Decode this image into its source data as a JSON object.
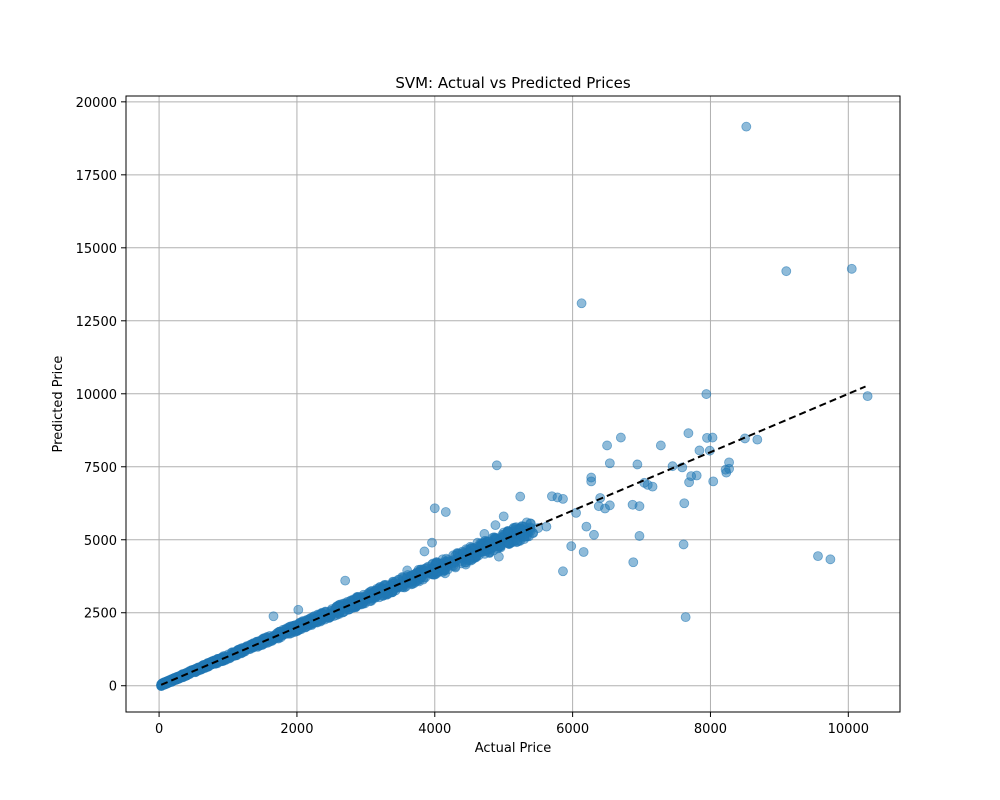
{
  "chart_data": {
    "type": "scatter",
    "title": "SVM: Actual vs Predicted Prices",
    "xlabel": "Actual Price",
    "ylabel": "Predicted Price",
    "xlim": [
      -480,
      10750
    ],
    "ylim": [
      -900,
      20200
    ],
    "xticks": [
      0,
      2000,
      4000,
      6000,
      8000,
      10000
    ],
    "xtick_labels": [
      "0",
      "2000",
      "4000",
      "6000",
      "8000",
      "10000"
    ],
    "yticks": [
      0,
      2500,
      5000,
      7500,
      10000,
      12500,
      15000,
      17500,
      20000
    ],
    "ytick_labels": [
      "0",
      "2500",
      "5000",
      "7500",
      "10000",
      "12500",
      "15000",
      "17500",
      "20000"
    ],
    "grid": true,
    "legend": "none",
    "point_color": "#1f77b4",
    "point_alpha": 0.5,
    "reference_line": {
      "style": "dashed",
      "color": "#000000",
      "x": [
        30,
        10250
      ],
      "y": [
        30,
        10250
      ]
    },
    "series": [
      {
        "x": [
          8520,
          9100,
          10050,
          6130,
          7940,
          10280,
          8680,
          8500,
          7950,
          8030,
          7680,
          6700,
          6500,
          7280,
          6540,
          4900,
          6940,
          7840,
          7450,
          8270,
          8220,
          6270,
          7990,
          7800,
          8270,
          8040,
          8230,
          7690,
          6270,
          7590,
          7620,
          5000,
          5240,
          4000,
          4160,
          6870,
          6970,
          7040,
          7090,
          7160,
          6400,
          5700,
          5780,
          5860,
          6050,
          6380,
          6470,
          6540,
          7720,
          7610,
          6970,
          6880,
          9560,
          9740,
          7640,
          5500,
          5300,
          4880,
          4760,
          4620,
          4500,
          4350,
          3850,
          3960,
          3600,
          3400,
          3050,
          2700,
          2500,
          2020,
          1660,
          5980,
          6160,
          6310,
          6200,
          5620,
          5860,
          4450,
          4300,
          4150,
          4720,
          4930
        ],
        "y": [
          19150,
          14200,
          14280,
          13100,
          9990,
          9920,
          8430,
          8470,
          8490,
          8500,
          8650,
          8500,
          8230,
          8230,
          7620,
          7550,
          7580,
          8060,
          7520,
          7650,
          7400,
          7130,
          8050,
          7200,
          7430,
          7000,
          7300,
          6970,
          7000,
          7480,
          6250,
          5800,
          6480,
          6080,
          5950,
          6200,
          6150,
          6950,
          6880,
          6820,
          6430,
          6490,
          6450,
          6400,
          5920,
          6150,
          6070,
          6180,
          7180,
          4840,
          5130,
          4230,
          4440,
          4330,
          2350,
          5400,
          5100,
          5500,
          4800,
          4900,
          4300,
          4400,
          4600,
          4900,
          3950,
          3500,
          3200,
          3600,
          2450,
          2600,
          2380,
          4780,
          4580,
          5170,
          5450,
          5450,
          3920,
          4150,
          4050,
          3850,
          5200,
          4420
        ]
      }
    ]
  }
}
